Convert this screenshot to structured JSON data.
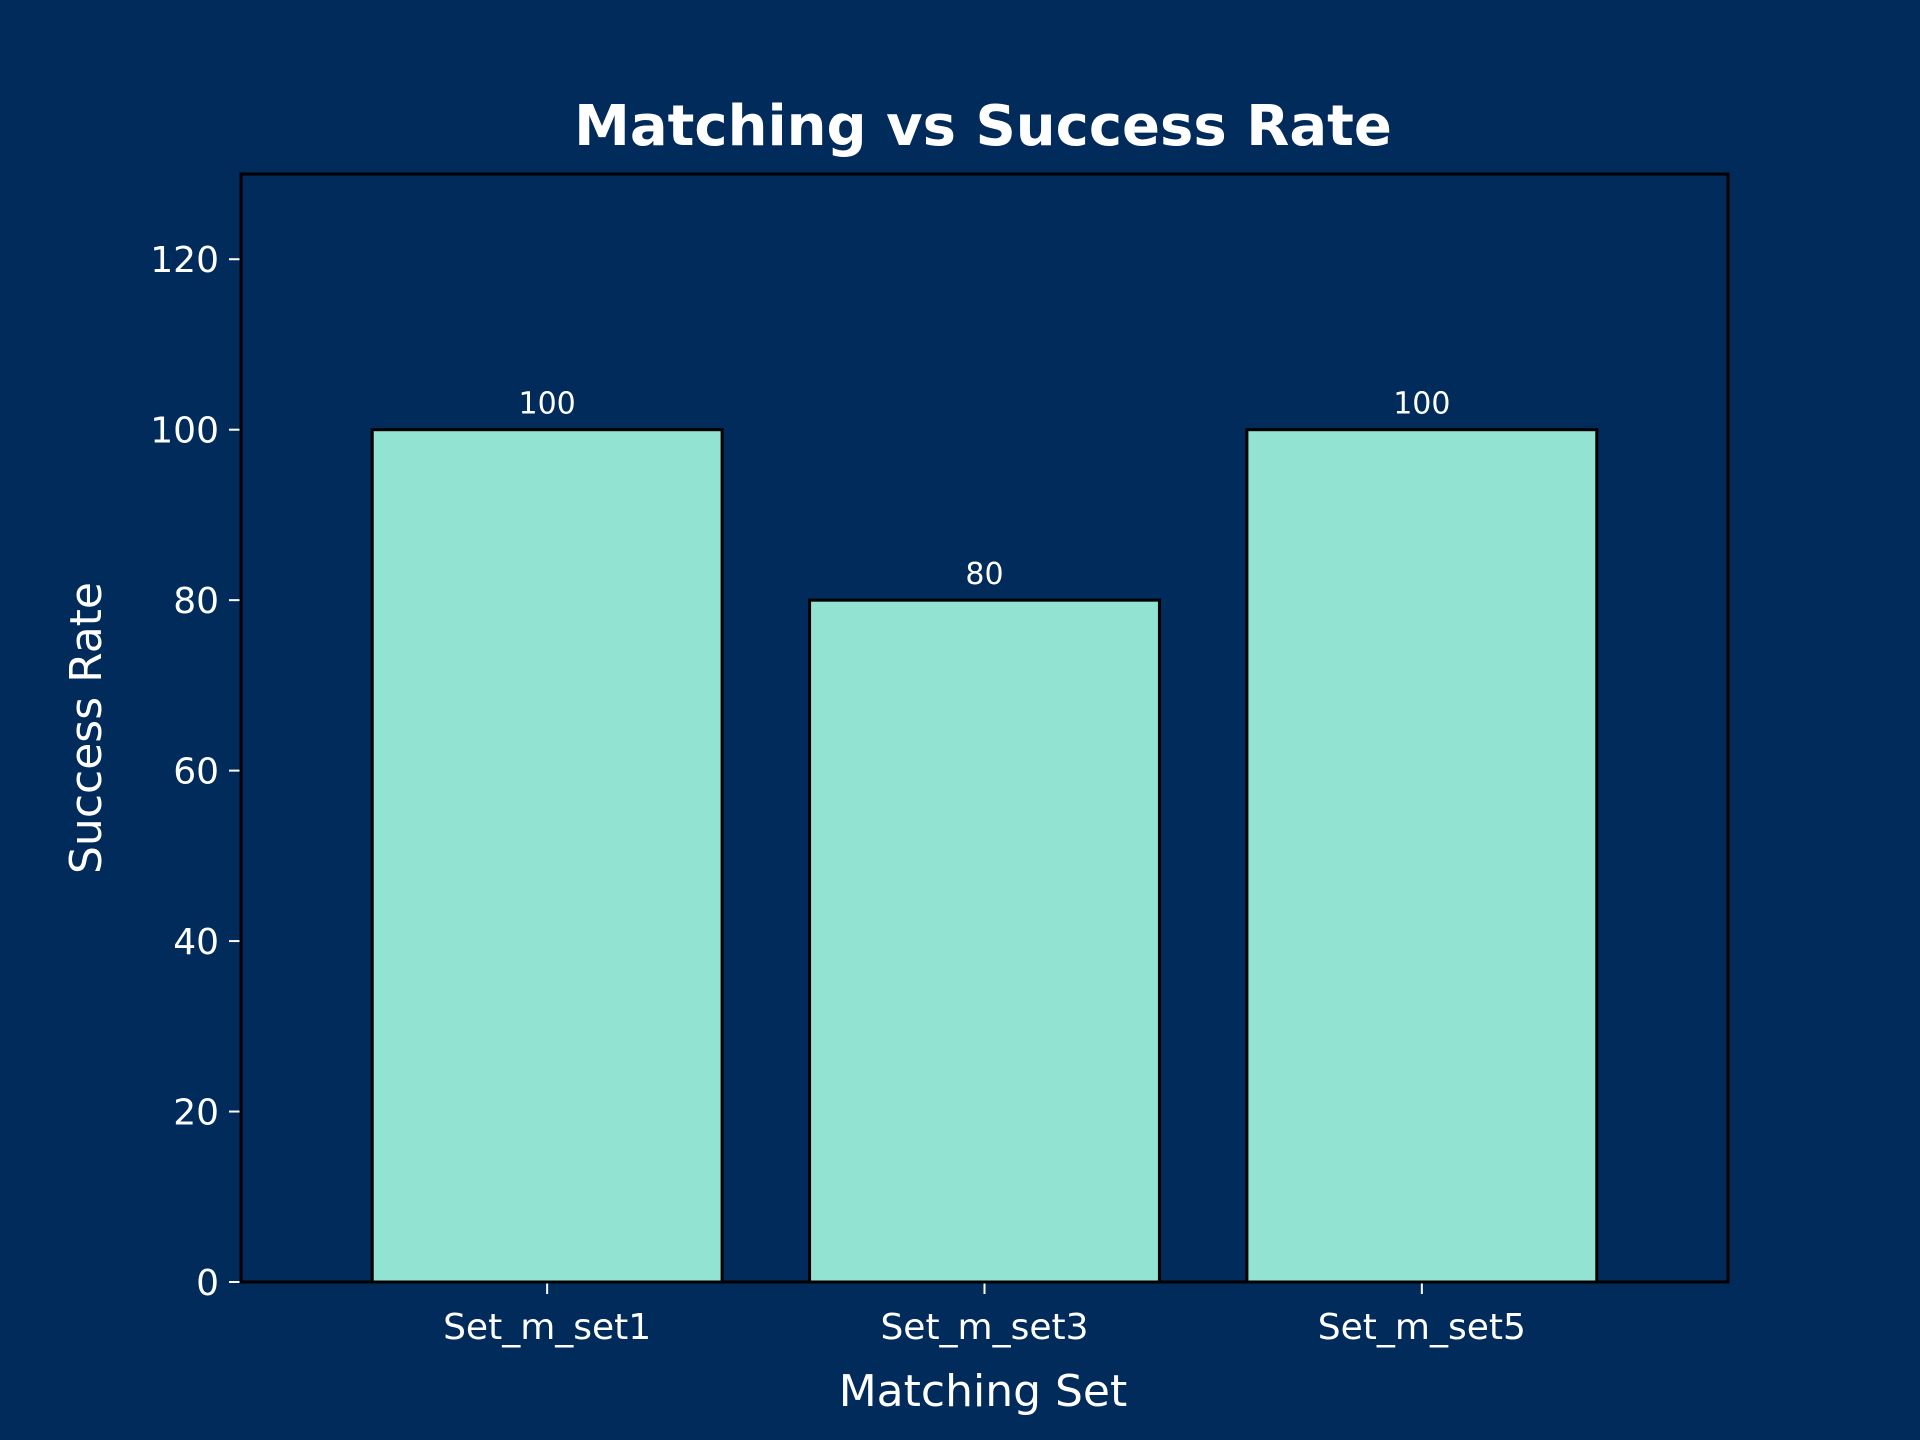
{
  "chart_data": {
    "type": "bar",
    "title": "Matching vs Success Rate",
    "xlabel": "Matching Set",
    "ylabel": "Success Rate",
    "categories": [
      "Set_m_set1",
      "Set_m_set3",
      "Set_m_set5"
    ],
    "values": [
      100,
      80,
      100
    ],
    "data_labels": [
      "100",
      "80",
      "100"
    ],
    "ylim": [
      0,
      130
    ],
    "yticks": [
      0,
      20,
      40,
      60,
      80,
      100,
      120
    ],
    "ytick_labels": [
      "0",
      "20",
      "40",
      "60",
      "80",
      "100",
      "120"
    ],
    "grid": false,
    "legend": "none",
    "colors": {
      "background": "#002b5b",
      "bar_fill": "#92e3d1",
      "bar_edge": "#000000",
      "text": "#ffffff",
      "axes": "#000000",
      "ticks": "#ffffff"
    }
  }
}
